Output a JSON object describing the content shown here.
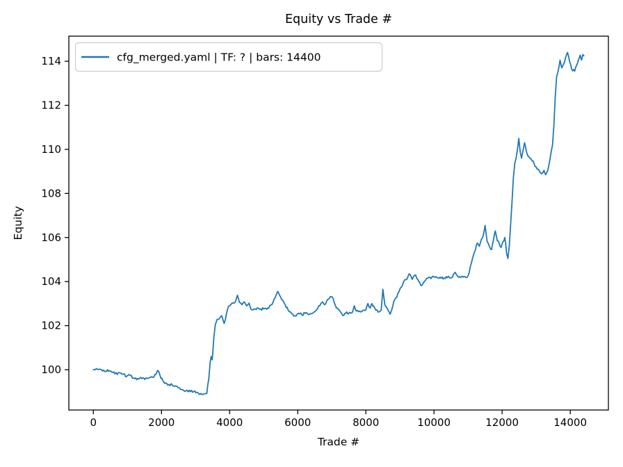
{
  "chart_data": {
    "type": "line",
    "title": "Equity vs Trade #",
    "xlabel": "Trade #",
    "ylabel": "Equity",
    "grid": false,
    "legend_position": "upper left",
    "xlim": [
      -720,
      15120
    ],
    "ylim": [
      98.17,
      115.14
    ],
    "x_ticks": [
      0,
      2000,
      4000,
      6000,
      8000,
      10000,
      12000,
      14000
    ],
    "y_ticks": [
      100,
      102,
      104,
      106,
      108,
      110,
      112,
      114
    ],
    "noise_amp": 0.06,
    "noise_step": 30,
    "series": [
      {
        "name": "cfg_merged.yaml | TF: ? | bars: 14400",
        "color": "#1f77b4",
        "points": [
          [
            0,
            100.0
          ],
          [
            150,
            100.0
          ],
          [
            300,
            99.98
          ],
          [
            450,
            99.93
          ],
          [
            600,
            99.9
          ],
          [
            700,
            99.78
          ],
          [
            780,
            99.86
          ],
          [
            880,
            99.8
          ],
          [
            980,
            99.7
          ],
          [
            1080,
            99.74
          ],
          [
            1180,
            99.62
          ],
          [
            1300,
            99.6
          ],
          [
            1450,
            99.63
          ],
          [
            1600,
            99.6
          ],
          [
            1750,
            99.65
          ],
          [
            1830,
            99.78
          ],
          [
            1890,
            99.97
          ],
          [
            1960,
            99.72
          ],
          [
            2040,
            99.5
          ],
          [
            2120,
            99.4
          ],
          [
            2220,
            99.33
          ],
          [
            2320,
            99.3
          ],
          [
            2400,
            99.26
          ],
          [
            2480,
            99.2
          ],
          [
            2560,
            99.1
          ],
          [
            2650,
            99.06
          ],
          [
            2750,
            99.07
          ],
          [
            2850,
            99.0
          ],
          [
            2950,
            99.01
          ],
          [
            3060,
            98.97
          ],
          [
            3160,
            98.92
          ],
          [
            3260,
            98.9
          ],
          [
            3330,
            98.92
          ],
          [
            3390,
            99.6
          ],
          [
            3430,
            100.35
          ],
          [
            3460,
            100.6
          ],
          [
            3490,
            100.45
          ],
          [
            3540,
            101.5
          ],
          [
            3580,
            102.05
          ],
          [
            3630,
            102.28
          ],
          [
            3700,
            102.32
          ],
          [
            3770,
            102.45
          ],
          [
            3840,
            102.1
          ],
          [
            3910,
            102.55
          ],
          [
            3970,
            102.88
          ],
          [
            4040,
            102.96
          ],
          [
            4110,
            103.02
          ],
          [
            4180,
            103.12
          ],
          [
            4230,
            103.38
          ],
          [
            4290,
            103.05
          ],
          [
            4360,
            102.95
          ],
          [
            4430,
            103.08
          ],
          [
            4500,
            102.9
          ],
          [
            4570,
            103.02
          ],
          [
            4650,
            102.72
          ],
          [
            4750,
            102.76
          ],
          [
            4880,
            102.74
          ],
          [
            5000,
            102.76
          ],
          [
            5120,
            102.8
          ],
          [
            5240,
            102.95
          ],
          [
            5340,
            103.28
          ],
          [
            5420,
            103.55
          ],
          [
            5490,
            103.32
          ],
          [
            5560,
            103.15
          ],
          [
            5630,
            102.95
          ],
          [
            5720,
            102.7
          ],
          [
            5820,
            102.55
          ],
          [
            5920,
            102.45
          ],
          [
            6020,
            102.56
          ],
          [
            6120,
            102.5
          ],
          [
            6220,
            102.56
          ],
          [
            6320,
            102.5
          ],
          [
            6420,
            102.55
          ],
          [
            6520,
            102.66
          ],
          [
            6620,
            102.9
          ],
          [
            6700,
            103.05
          ],
          [
            6790,
            102.95
          ],
          [
            6890,
            103.2
          ],
          [
            6960,
            103.32
          ],
          [
            7040,
            103.22
          ],
          [
            7110,
            102.9
          ],
          [
            7190,
            102.74
          ],
          [
            7260,
            102.6
          ],
          [
            7320,
            102.46
          ],
          [
            7410,
            102.56
          ],
          [
            7520,
            102.6
          ],
          [
            7610,
            102.62
          ],
          [
            7660,
            102.9
          ],
          [
            7720,
            102.66
          ],
          [
            7820,
            102.66
          ],
          [
            7920,
            102.7
          ],
          [
            8010,
            102.76
          ],
          [
            8060,
            103.0
          ],
          [
            8130,
            102.8
          ],
          [
            8180,
            103.0
          ],
          [
            8260,
            102.8
          ],
          [
            8360,
            102.62
          ],
          [
            8450,
            102.7
          ],
          [
            8500,
            103.65
          ],
          [
            8560,
            102.92
          ],
          [
            8650,
            102.7
          ],
          [
            8710,
            102.52
          ],
          [
            8760,
            102.72
          ],
          [
            8820,
            103.1
          ],
          [
            8910,
            103.3
          ],
          [
            9010,
            103.7
          ],
          [
            9110,
            104.0
          ],
          [
            9210,
            104.12
          ],
          [
            9270,
            104.35
          ],
          [
            9360,
            104.1
          ],
          [
            9460,
            104.3
          ],
          [
            9560,
            104.0
          ],
          [
            9640,
            103.82
          ],
          [
            9720,
            104.0
          ],
          [
            9820,
            104.16
          ],
          [
            9940,
            104.2
          ],
          [
            10060,
            104.22
          ],
          [
            10180,
            104.2
          ],
          [
            10300,
            104.16
          ],
          [
            10420,
            104.24
          ],
          [
            10540,
            104.2
          ],
          [
            10620,
            104.42
          ],
          [
            10720,
            104.2
          ],
          [
            10860,
            104.2
          ],
          [
            11000,
            104.26
          ],
          [
            11070,
            104.7
          ],
          [
            11130,
            105.05
          ],
          [
            11190,
            105.35
          ],
          [
            11270,
            105.75
          ],
          [
            11330,
            105.6
          ],
          [
            11390,
            105.92
          ],
          [
            11450,
            106.12
          ],
          [
            11500,
            106.55
          ],
          [
            11560,
            105.82
          ],
          [
            11620,
            105.62
          ],
          [
            11690,
            105.45
          ],
          [
            11750,
            105.92
          ],
          [
            11800,
            106.3
          ],
          [
            11860,
            105.85
          ],
          [
            11910,
            105.75
          ],
          [
            11970,
            105.55
          ],
          [
            12030,
            105.82
          ],
          [
            12080,
            106.0
          ],
          [
            12130,
            105.3
          ],
          [
            12170,
            105.05
          ],
          [
            12210,
            105.6
          ],
          [
            12250,
            106.6
          ],
          [
            12290,
            107.6
          ],
          [
            12330,
            108.7
          ],
          [
            12370,
            109.35
          ],
          [
            12410,
            109.6
          ],
          [
            12450,
            110.0
          ],
          [
            12490,
            110.5
          ],
          [
            12530,
            109.9
          ],
          [
            12570,
            109.6
          ],
          [
            12610,
            109.92
          ],
          [
            12660,
            110.3
          ],
          [
            12710,
            109.92
          ],
          [
            12760,
            109.7
          ],
          [
            12820,
            109.6
          ],
          [
            12880,
            109.48
          ],
          [
            12940,
            109.35
          ],
          [
            13000,
            109.2
          ],
          [
            13060,
            109.1
          ],
          [
            13120,
            108.95
          ],
          [
            13170,
            108.9
          ],
          [
            13230,
            109.05
          ],
          [
            13280,
            108.85
          ],
          [
            13330,
            109.0
          ],
          [
            13380,
            109.35
          ],
          [
            13430,
            109.8
          ],
          [
            13480,
            110.2
          ],
          [
            13520,
            111.1
          ],
          [
            13560,
            112.4
          ],
          [
            13600,
            113.3
          ],
          [
            13650,
            113.6
          ],
          [
            13700,
            114.05
          ],
          [
            13750,
            113.7
          ],
          [
            13800,
            113.85
          ],
          [
            13860,
            114.15
          ],
          [
            13920,
            114.4
          ],
          [
            13980,
            114.0
          ],
          [
            14040,
            113.65
          ],
          [
            14130,
            113.55
          ],
          [
            14210,
            113.9
          ],
          [
            14290,
            114.28
          ],
          [
            14330,
            114.05
          ],
          [
            14370,
            114.3
          ],
          [
            14400,
            114.25
          ]
        ]
      }
    ]
  }
}
